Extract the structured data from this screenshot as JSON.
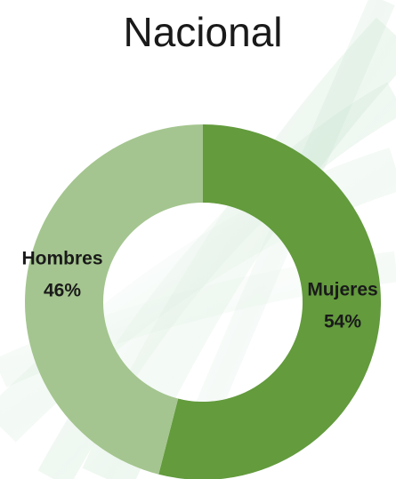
{
  "chart_data": {
    "type": "donut",
    "title": "Nacional",
    "categories": [
      "Mujeres",
      "Hombres"
    ],
    "values": [
      54,
      46
    ],
    "value_labels": [
      "54%",
      "46%"
    ],
    "colors": [
      "#639b3d",
      "#a4c58f"
    ]
  }
}
